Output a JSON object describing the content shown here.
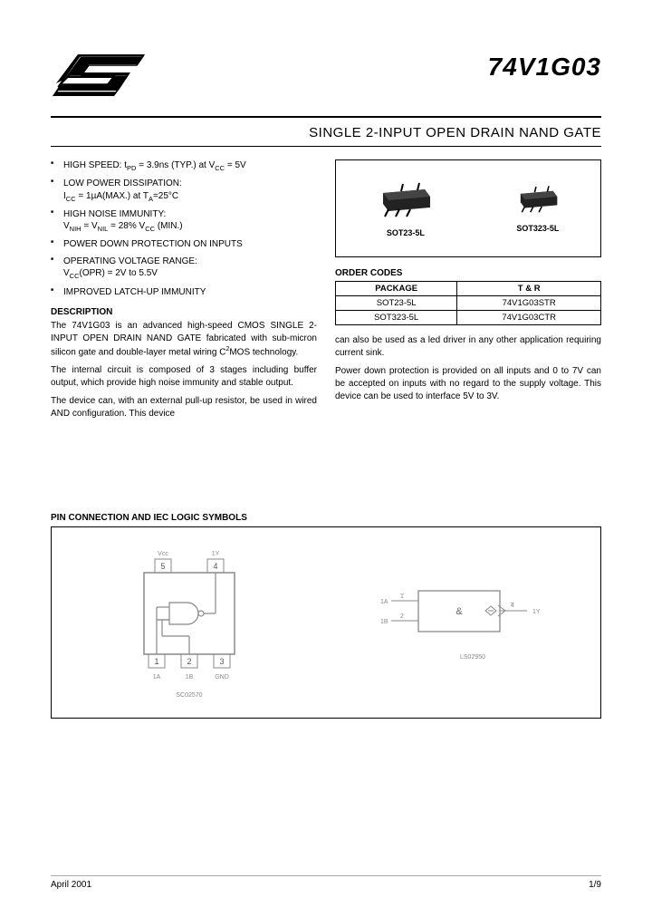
{
  "part_number": "74V1G03",
  "title": "SINGLE 2-INPUT OPEN DRAIN NAND GATE",
  "features": [
    {
      "main": "HIGH SPEED: t<sub>PD</sub> = 3.9ns (TYP.) at V<sub>CC</sub> = 5V"
    },
    {
      "main": "LOW POWER DISSIPATION:",
      "sub": "I<sub>CC</sub> = 1µA(MAX.) at T<sub>A</sub>=25°C"
    },
    {
      "main": "HIGH NOISE IMMUNITY:",
      "sub": "V<sub>NIH</sub> = V<sub>NIL</sub> = 28% V<sub>CC</sub> (MIN.)"
    },
    {
      "main": "POWER DOWN PROTECTION ON INPUTS"
    },
    {
      "main": "OPERATING VOLTAGE RANGE:",
      "sub": "V<sub>CC</sub>(OPR) = 2V to 5.5V"
    },
    {
      "main": "IMPROVED LATCH-UP IMMUNITY"
    }
  ],
  "description_heading": "DESCRIPTION",
  "description_paragraphs": [
    "The 74V1G03 is an advanced high-speed CMOS SINGLE 2-INPUT OPEN DRAIN NAND GATE fabricated with sub-micron silicon gate and double-layer metal wiring C<sup>2</sup>MOS technology.",
    "The internal circuit is composed of 3 stages including buffer output, which provide high noise immunity and stable output.",
    "The device can, with an external pull-up resistor, be used in wired AND configuration. This device"
  ],
  "packages": [
    {
      "label": "SOT23-5L",
      "scale": 1.0
    },
    {
      "label": "SOT323-5L",
      "scale": 0.78
    }
  ],
  "order_codes_heading": "ORDER CODES",
  "order_codes": {
    "columns": [
      "PACKAGE",
      "T & R"
    ],
    "rows": [
      [
        "SOT23-5L",
        "74V1G03STR"
      ],
      [
        "SOT323-5L",
        "74V1G03CTR"
      ]
    ]
  },
  "right_paragraphs": [
    "can also be used as a led driver in any other application requiring current sink.",
    "Power down protection is provided on all inputs and 0 to 7V can be accepted on inputs with no regard to the supply voltage. This device can be used to interface 5V to 3V."
  ],
  "pin_heading": "PIN CONNECTION AND IEC LOGIC SYMBOLS",
  "pin_left": {
    "top_pins": [
      "5",
      "4"
    ],
    "top_labels": [
      "Vcc",
      "1Y"
    ],
    "bot_pins": [
      "1",
      "2",
      "3"
    ],
    "bot_labels": [
      "1A",
      "1B",
      "GND"
    ],
    "footer_code": "SC02570"
  },
  "pin_right": {
    "left_labels": [
      "1A",
      "1B"
    ],
    "left_pins": [
      "1",
      "2"
    ],
    "center": "&",
    "right_pin": "4",
    "right_label": "1Y",
    "footer_code": "LS02950"
  },
  "footer_date": "April 2001",
  "footer_page": "1/9",
  "colors": {
    "text": "#000000",
    "bg": "#ffffff",
    "faint": "#888888",
    "rule": "#000000"
  }
}
